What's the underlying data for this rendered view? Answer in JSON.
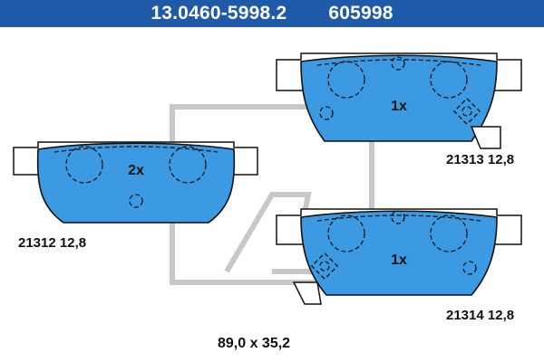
{
  "header": {
    "part_number": "13.0460-5998.2",
    "ref_number": "605998",
    "background": "#1e5aa8",
    "text_color": "#ffffff"
  },
  "pads": [
    {
      "id": "21312",
      "quantity": "2x",
      "label": "21312 12,8"
    },
    {
      "id": "21313",
      "quantity": "1x",
      "label": "21313 12,8"
    },
    {
      "id": "21314",
      "quantity": "1x",
      "label": "21314 12,8"
    }
  ],
  "dimensions": "89,0 x 35,2",
  "colors": {
    "pad_fill": "#3b9ae1",
    "outline": "#111111",
    "watermark": "#c8c8c8"
  }
}
